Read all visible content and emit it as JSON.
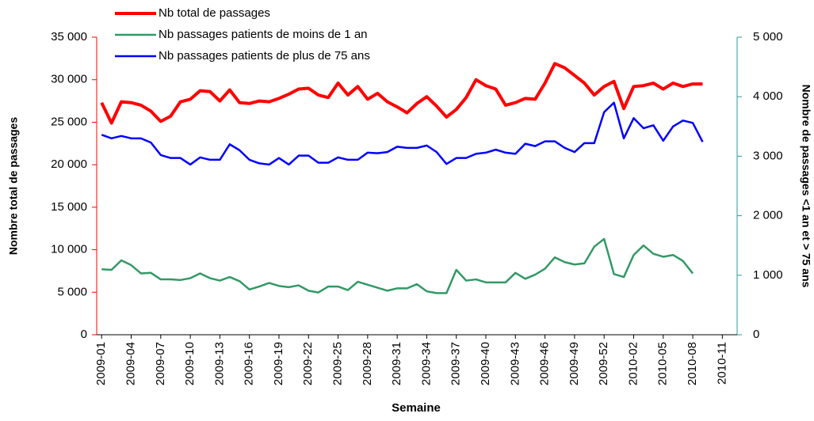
{
  "chart_data": {
    "type": "line",
    "x_label": "Semaine",
    "y_label": "Nombre total de passages",
    "y2_label": "Nombre de passages <1 an et > 75 ans",
    "categories": [
      "2009-01",
      null,
      null,
      "2009-04",
      null,
      null,
      "2009-07",
      null,
      null,
      "2009-10",
      null,
      null,
      "2009-13",
      null,
      null,
      "2009-16",
      null,
      null,
      "2009-19",
      null,
      null,
      "2009-22",
      null,
      null,
      "2009-25",
      null,
      null,
      "2009-28",
      null,
      null,
      "2009-31",
      null,
      null,
      "2009-34",
      null,
      null,
      "2009-37",
      null,
      null,
      "2009-40",
      null,
      null,
      "2009-43",
      null,
      null,
      "2009-46",
      null,
      null,
      "2009-49",
      null,
      null,
      "2009-52",
      null,
      null,
      "2010-02",
      null,
      null,
      "2010-05",
      null,
      null,
      "2010-08",
      null,
      null,
      "2010-11",
      null
    ],
    "ylim": [
      0,
      35000
    ],
    "yticks": [
      0,
      {
        "value": 5000,
        "label": "5 000"
      },
      {
        "value": 10000,
        "label": "10 000"
      },
      {
        "value": 15000,
        "label": "15 000"
      },
      {
        "value": 20000,
        "label": "20 000"
      },
      {
        "value": 25000,
        "label": "25 000"
      },
      {
        "value": 30000,
        "label": "30 000"
      },
      {
        "value": 35000,
        "label": "35 000"
      }
    ],
    "y2lim": [
      0,
      5000
    ],
    "y2ticks": [
      0,
      {
        "value": 1000,
        "label": "1 000"
      },
      {
        "value": 2000,
        "label": "2 000"
      },
      {
        "value": 3000,
        "label": "3 000"
      },
      {
        "value": 4000,
        "label": "4 000"
      },
      {
        "value": 5000,
        "label": "5 000"
      }
    ],
    "y_axis_color": "#ff0000",
    "y2_axis_color": "#339999",
    "series": [
      {
        "name": "Nb total de passages",
        "color": "#ff0000",
        "width": 4,
        "values": [
          27300,
          24900,
          27400,
          27300,
          27000,
          26300,
          25100,
          25700,
          27400,
          27700,
          28700,
          28600,
          27500,
          28800,
          27300,
          27200,
          27500,
          27400,
          27800,
          28300,
          28900,
          29000,
          28200,
          27900,
          29600,
          28200,
          29200,
          27700,
          28400,
          27400,
          26800,
          26100,
          27200,
          28000,
          26900,
          25600,
          26500,
          27900,
          30000,
          29300,
          28900,
          27000,
          27300,
          27800,
          27700,
          29600,
          31900,
          31400,
          30500,
          29600,
          28200,
          29200,
          29800,
          26600,
          29200,
          29300,
          29600,
          28900,
          29600,
          29200,
          29500,
          29500,
          null,
          null,
          null
        ]
      },
      {
        "name": "Nb passages patients de moins de 1 an",
        "color": "#339966",
        "width": 2.5,
        "axis": "y2",
        "values": [
          1100,
          1090,
          1250,
          1170,
          1030,
          1040,
          930,
          930,
          920,
          950,
          1030,
          950,
          910,
          970,
          900,
          760,
          810,
          870,
          820,
          800,
          830,
          740,
          710,
          810,
          810,
          750,
          890,
          840,
          790,
          740,
          780,
          780,
          850,
          730,
          700,
          700,
          1090,
          910,
          930,
          880,
          880,
          880,
          1040,
          940,
          1010,
          1110,
          1300,
          1220,
          1180,
          1200,
          1480,
          1610,
          1020,
          970,
          1340,
          1500,
          1360,
          1310,
          1340,
          1240,
          1030,
          null,
          null,
          null,
          null
        ]
      },
      {
        "name": "Nb passages patients de plus de 75 ans",
        "color": "#0000ff",
        "width": 2.5,
        "axis": "y2",
        "values": [
          3360,
          3300,
          3340,
          3300,
          3300,
          3230,
          3020,
          2970,
          2970,
          2860,
          2980,
          2940,
          2940,
          3200,
          3100,
          2940,
          2880,
          2860,
          2970,
          2860,
          3010,
          3010,
          2890,
          2890,
          2980,
          2940,
          2940,
          3060,
          3050,
          3070,
          3160,
          3140,
          3140,
          3180,
          3070,
          2870,
          2970,
          2970,
          3040,
          3060,
          3110,
          3060,
          3040,
          3210,
          3170,
          3250,
          3250,
          3140,
          3070,
          3220,
          3220,
          3740,
          3900,
          3300,
          3640,
          3470,
          3520,
          3260,
          3500,
          3600,
          3560,
          3240,
          null,
          null,
          null
        ]
      }
    ]
  }
}
